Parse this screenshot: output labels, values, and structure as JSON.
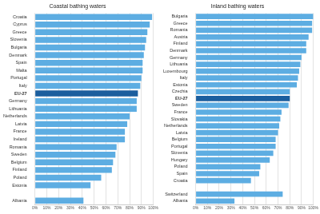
{
  "chart_data": [
    {
      "type": "bar",
      "orientation": "horizontal",
      "title": "Coastal bathing waters",
      "categories": [
        "Croatia",
        "Cyprus",
        "Greece",
        "Slovenia",
        "Bulgaria",
        "Denmark",
        "Spain",
        "Malta",
        "Portugal",
        "Italy",
        "EU-27",
        "Germany",
        "Lithuania",
        "Netherlands",
        "Latvia",
        "France",
        "Ireland",
        "Romania",
        "Sweden",
        "Belgium",
        "Finland",
        "Poland",
        "Estonia",
        null,
        "Albania"
      ],
      "values": [
        99,
        97,
        95,
        94,
        93,
        92,
        91,
        91,
        90,
        89,
        87,
        86,
        86,
        80,
        78,
        76,
        76,
        69,
        68,
        66,
        65,
        56,
        47,
        null,
        41
      ],
      "colors": [
        "#5dade2",
        "#5dade2",
        "#5dade2",
        "#5dade2",
        "#5dade2",
        "#5dade2",
        "#5dade2",
        "#5dade2",
        "#5dade2",
        "#5dade2",
        "#1b5e9e",
        "#5dade2",
        "#5dade2",
        "#5dade2",
        "#5dade2",
        "#5dade2",
        "#5dade2",
        "#5dade2",
        "#5dade2",
        "#5dade2",
        "#5dade2",
        "#5dade2",
        "#5dade2",
        "#5dade2",
        "#5dade2"
      ],
      "xlim": [
        0,
        100
      ],
      "xticks": [
        {
          "value": 0,
          "label": "0%"
        },
        {
          "value": 10,
          "label": "10%"
        },
        {
          "value": 20,
          "label": "20%"
        },
        {
          "value": 30,
          "label": "30%"
        },
        {
          "value": 40,
          "label": "40%"
        },
        {
          "value": 50,
          "label": "50%"
        },
        {
          "value": 60,
          "label": "60%"
        },
        {
          "value": 70,
          "label": "70%"
        },
        {
          "value": 80,
          "label": "80%"
        },
        {
          "value": 90,
          "label": "90%"
        },
        {
          "value": 100,
          "label": "100%"
        }
      ],
      "grid": true
    },
    {
      "type": "bar",
      "orientation": "horizontal",
      "title": "Inland bathing waters",
      "categories": [
        "Bulgaria",
        "Greece",
        "Romania",
        "Austria",
        "Finland",
        "Denmark",
        "Germany",
        "Lithuania",
        "Luxembourg",
        "Italy",
        "Estonia",
        "Czechia",
        "EU-27",
        "Sweden",
        "France",
        "Slovakia",
        "Netherlands",
        "Latvia",
        "Belgium",
        "Portugal",
        "Slovenia",
        "Hungary",
        "Poland",
        "Spain",
        "Croatia",
        null,
        "Switzerland",
        "Albania"
      ],
      "values": [
        100,
        99,
        99,
        96,
        94,
        94,
        90,
        89,
        88,
        87,
        86,
        80,
        80,
        79,
        73,
        72,
        71,
        70,
        68,
        68,
        66,
        63,
        55,
        54,
        47,
        null,
        74,
        33
      ],
      "colors": [
        "#5dade2",
        "#5dade2",
        "#5dade2",
        "#5dade2",
        "#5dade2",
        "#5dade2",
        "#5dade2",
        "#5dade2",
        "#5dade2",
        "#5dade2",
        "#5dade2",
        "#5dade2",
        "#1b5e9e",
        "#5dade2",
        "#5dade2",
        "#5dade2",
        "#5dade2",
        "#5dade2",
        "#5dade2",
        "#5dade2",
        "#5dade2",
        "#5dade2",
        "#5dade2",
        "#5dade2",
        "#5dade2",
        "#5dade2",
        "#5dade2",
        "#5dade2"
      ],
      "xlim": [
        0,
        100
      ],
      "xticks": [
        {
          "value": 0,
          "label": "0%"
        },
        {
          "value": 10,
          "label": "10%"
        },
        {
          "value": 20,
          "label": "20%"
        },
        {
          "value": 30,
          "label": "30%"
        },
        {
          "value": 40,
          "label": "40%"
        },
        {
          "value": 50,
          "label": "50%"
        },
        {
          "value": 60,
          "label": "60%"
        },
        {
          "value": 70,
          "label": "70%"
        },
        {
          "value": 80,
          "label": "80%"
        },
        {
          "value": 90,
          "label": "90%"
        },
        {
          "value": 100,
          "label": "100%"
        }
      ],
      "grid": true
    }
  ]
}
